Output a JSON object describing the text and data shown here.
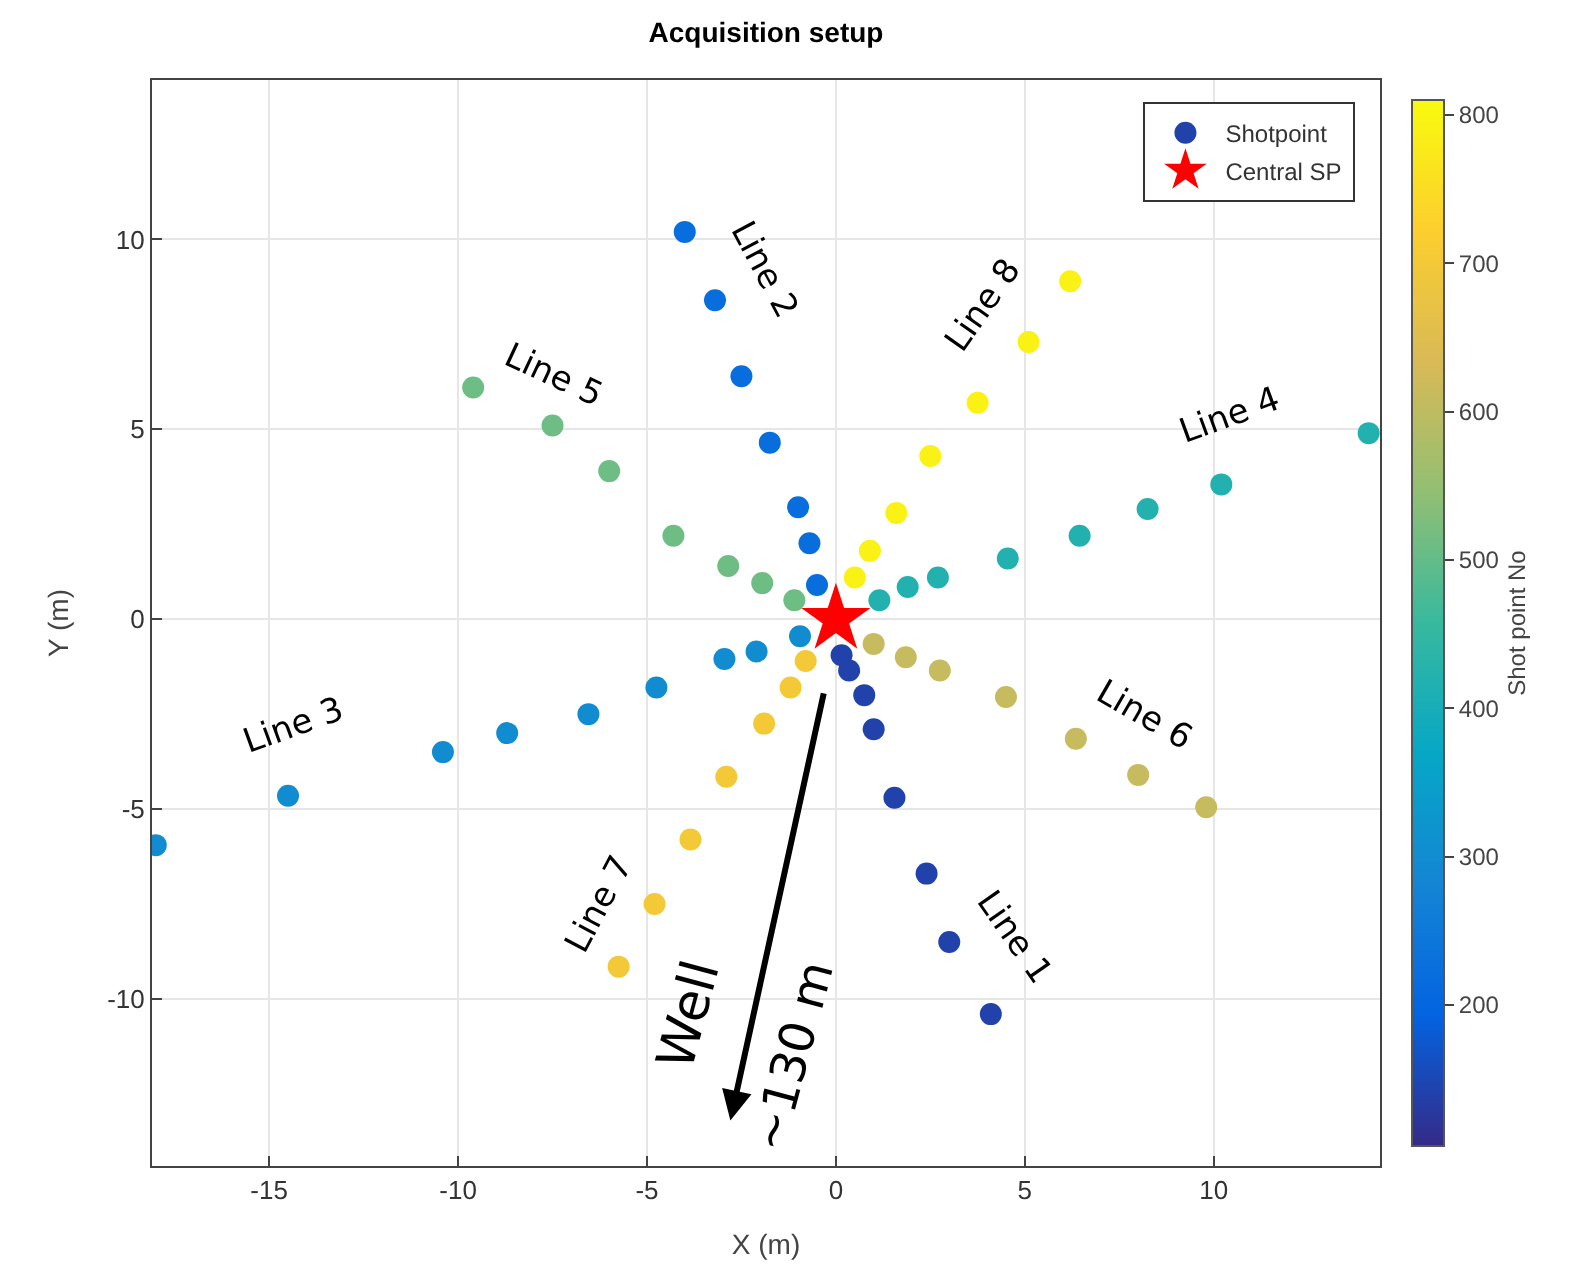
{
  "chart_data": {
    "type": "scatter",
    "title": "Acquisition setup",
    "xlabel": "X (m)",
    "ylabel": "Y (m)",
    "clabel": "Shot point No",
    "xlim": [
      -18.1,
      14.4
    ],
    "ylim": [
      -14.4,
      14.2
    ],
    "xticks": [
      -15,
      -10,
      -5,
      0,
      5,
      10
    ],
    "yticks": [
      -10,
      -5,
      0,
      5,
      10
    ],
    "clim": [
      105,
      810
    ],
    "cticks": [
      200,
      300,
      400,
      500,
      600,
      700,
      800
    ],
    "grid": true,
    "legend": "top right",
    "series": [
      {
        "name": "Shotpoint",
        "marker": "circle",
        "colors": [
          "#2141ab",
          "#2141ab",
          "#2141ab",
          "#2141ab",
          "#2141ab",
          "#2141ab",
          "#2141ab",
          "#2141ab",
          "#086ddd",
          "#086ddd",
          "#086ddd",
          "#086ddd",
          "#086ddd",
          "#086ddd",
          "#086ddd",
          "#118cd1",
          "#118cd1",
          "#118cd1",
          "#118cd1",
          "#118cd1",
          "#118cd1",
          "#118cd1",
          "#118cd1",
          "#118cd1",
          "#23b1af",
          "#23b1af",
          "#23b1af",
          "#23b1af",
          "#23b1af",
          "#23b1af",
          "#23b1af",
          "#23b1af",
          "#6ebd84",
          "#6ebd84",
          "#6ebd84",
          "#6ebd84",
          "#6ebd84",
          "#6ebd84",
          "#6ebd84",
          "#c6bb5e",
          "#c6bb5e",
          "#c6bb5e",
          "#c6bb5e",
          "#c6bb5e",
          "#c6bb5e",
          "#c6bb5e",
          "#f3c938",
          "#f3c938",
          "#f3c938",
          "#f3c938",
          "#f3c938",
          "#f3c938",
          "#f3c938",
          "#faf115",
          "#faf115",
          "#faf115",
          "#faf115",
          "#faf115",
          "#faf115",
          "#faf115"
        ],
        "x": [
          0.15,
          0.35,
          0.75,
          1.0,
          1.55,
          2.4,
          3.0,
          4.1,
          -0.5,
          -0.7,
          -1.0,
          -1.75,
          -2.5,
          -3.2,
          -4.0,
          -0.95,
          -2.1,
          -2.95,
          -4.75,
          -6.55,
          -8.7,
          -10.4,
          -14.5,
          -18.0,
          1.15,
          1.9,
          2.7,
          4.55,
          6.45,
          8.25,
          10.2,
          14.1,
          -1.1,
          -1.95,
          -2.85,
          -4.3,
          -6.0,
          -7.5,
          -9.6,
          1.0,
          1.85,
          2.75,
          4.5,
          6.35,
          8.0,
          9.8,
          -0.8,
          -1.2,
          -1.9,
          -2.9,
          -3.85,
          -4.8,
          -5.75,
          0.5,
          0.9,
          1.6,
          2.5,
          3.75,
          5.1,
          6.2
        ],
        "values": [
          -0.95,
          -1.35,
          -2.0,
          -2.9,
          -4.7,
          -6.7,
          -8.5,
          -10.4,
          0.9,
          2.0,
          2.95,
          4.65,
          6.4,
          8.4,
          10.2,
          -0.45,
          -0.85,
          -1.05,
          -1.8,
          -2.5,
          -3.0,
          -3.5,
          -4.65,
          -5.95,
          0.5,
          0.85,
          1.1,
          1.6,
          2.2,
          2.9,
          3.55,
          4.9,
          0.5,
          0.95,
          1.4,
          2.2,
          3.9,
          5.1,
          6.1,
          -0.65,
          -1.0,
          -1.35,
          -2.05,
          -3.15,
          -4.1,
          -4.95,
          -1.1,
          -1.8,
          -2.75,
          -4.15,
          -5.8,
          -7.5,
          -9.15,
          1.1,
          1.8,
          2.8,
          4.3,
          5.7,
          7.3,
          8.9
        ]
      },
      {
        "name": "Central SP",
        "marker": "star",
        "color": "#ff0000",
        "x": [
          0
        ],
        "values": [
          0
        ]
      }
    ],
    "annotations": [
      "Line 1",
      "Line 2",
      "Line 3",
      "Line 4",
      "Line 5",
      "Line 6",
      "Line 7",
      "Line 8",
      "Well",
      "~130 m"
    ]
  }
}
